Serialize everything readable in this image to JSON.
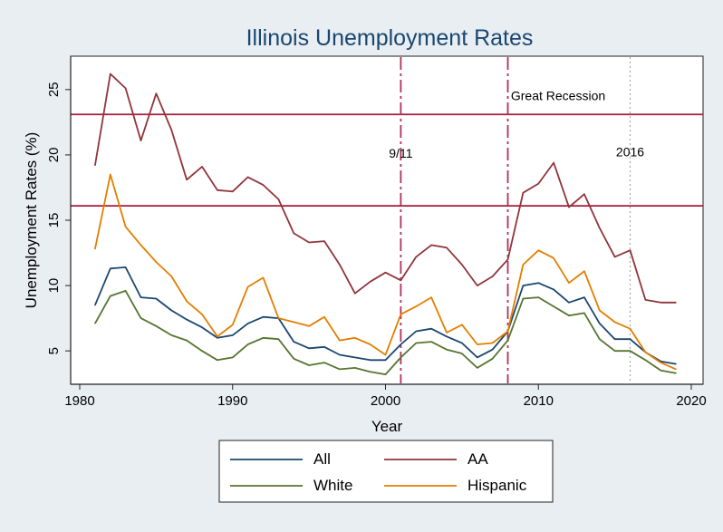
{
  "chart_data": {
    "type": "line",
    "title": "Illinois Unemployment Rates",
    "xlabel": "Year",
    "ylabel": "Unemployment Rates (%)",
    "xlim": [
      1980,
      2020
    ],
    "ylim": [
      3,
      27
    ],
    "xticks": [
      1980,
      1990,
      2000,
      2010,
      2020
    ],
    "yticks": [
      5,
      10,
      15,
      20,
      25
    ],
    "grid": false,
    "legend": "bottom",
    "x": [
      1981,
      1982,
      1983,
      1984,
      1985,
      1986,
      1987,
      1988,
      1989,
      1990,
      1991,
      1992,
      1993,
      1994,
      1995,
      1996,
      1997,
      1998,
      1999,
      2000,
      2001,
      2002,
      2003,
      2004,
      2005,
      2006,
      2007,
      2008,
      2009,
      2010,
      2011,
      2012,
      2013,
      2014,
      2015,
      2016,
      2017,
      2018,
      2019
    ],
    "series": [
      {
        "name": "All",
        "color": "#1a476f",
        "values": [
          8.5,
          11.3,
          11.4,
          9.1,
          9.0,
          8.1,
          7.4,
          6.8,
          6.0,
          6.2,
          7.1,
          7.6,
          7.5,
          5.7,
          5.2,
          5.3,
          4.7,
          4.5,
          4.3,
          4.3,
          5.5,
          6.5,
          6.7,
          6.1,
          5.6,
          4.5,
          5.1,
          6.5,
          10.0,
          10.2,
          9.7,
          8.7,
          9.1,
          7.1,
          5.9,
          5.9,
          4.9,
          4.2,
          4.0
        ]
      },
      {
        "name": "AA",
        "color": "#90353b",
        "values": [
          19.2,
          26.2,
          25.1,
          21.1,
          24.7,
          21.9,
          18.1,
          19.1,
          17.3,
          17.2,
          18.3,
          17.7,
          16.6,
          14.0,
          13.3,
          13.4,
          11.6,
          9.4,
          10.3,
          11.0,
          10.4,
          12.2,
          13.1,
          12.9,
          11.6,
          10.0,
          10.7,
          12.0,
          17.1,
          17.8,
          19.4,
          16.0,
          17.0,
          14.4,
          12.2,
          12.7,
          8.9,
          8.7,
          8.7
        ]
      },
      {
        "name": "White",
        "color": "#55752f",
        "values": [
          7.1,
          9.2,
          9.6,
          7.5,
          6.9,
          6.2,
          5.8,
          5.0,
          4.3,
          4.5,
          5.5,
          6.0,
          5.9,
          4.4,
          3.9,
          4.1,
          3.6,
          3.7,
          3.4,
          3.2,
          4.5,
          5.6,
          5.7,
          5.1,
          4.8,
          3.7,
          4.4,
          5.8,
          9.0,
          9.1,
          8.4,
          7.7,
          7.9,
          5.9,
          5.0,
          5.0,
          4.3,
          3.5,
          3.3
        ]
      },
      {
        "name": "Hispanic",
        "color": "#e37e00",
        "values": [
          12.8,
          18.5,
          14.5,
          13.1,
          11.8,
          10.7,
          8.8,
          7.8,
          6.1,
          7.0,
          9.9,
          10.6,
          7.5,
          7.2,
          6.9,
          7.6,
          5.8,
          6.0,
          5.5,
          4.7,
          7.8,
          8.4,
          9.1,
          6.4,
          7.0,
          5.5,
          5.6,
          6.5,
          11.6,
          12.7,
          12.1,
          10.2,
          11.1,
          8.1,
          7.2,
          6.7,
          4.9,
          4.1,
          3.6
        ]
      }
    ],
    "hlines": [
      {
        "y": 23.1,
        "color": "#a61d3a"
      },
      {
        "y": 16.1,
        "color": "#a61d3a"
      }
    ],
    "vlines": [
      {
        "x": 2001,
        "style": "dashdot",
        "color": "#b0305a",
        "label": "9/11",
        "label_y": 19.8
      },
      {
        "x": 2008,
        "style": "dashdot",
        "color": "#b0305a"
      },
      {
        "x": 2016,
        "style": "dotted",
        "color": "#a8a8a8",
        "label": "2016",
        "label_y": 19.9
      }
    ],
    "annotations": [
      {
        "text": "Great Recession",
        "x": 2008.2,
        "y": 24.2
      }
    ]
  }
}
